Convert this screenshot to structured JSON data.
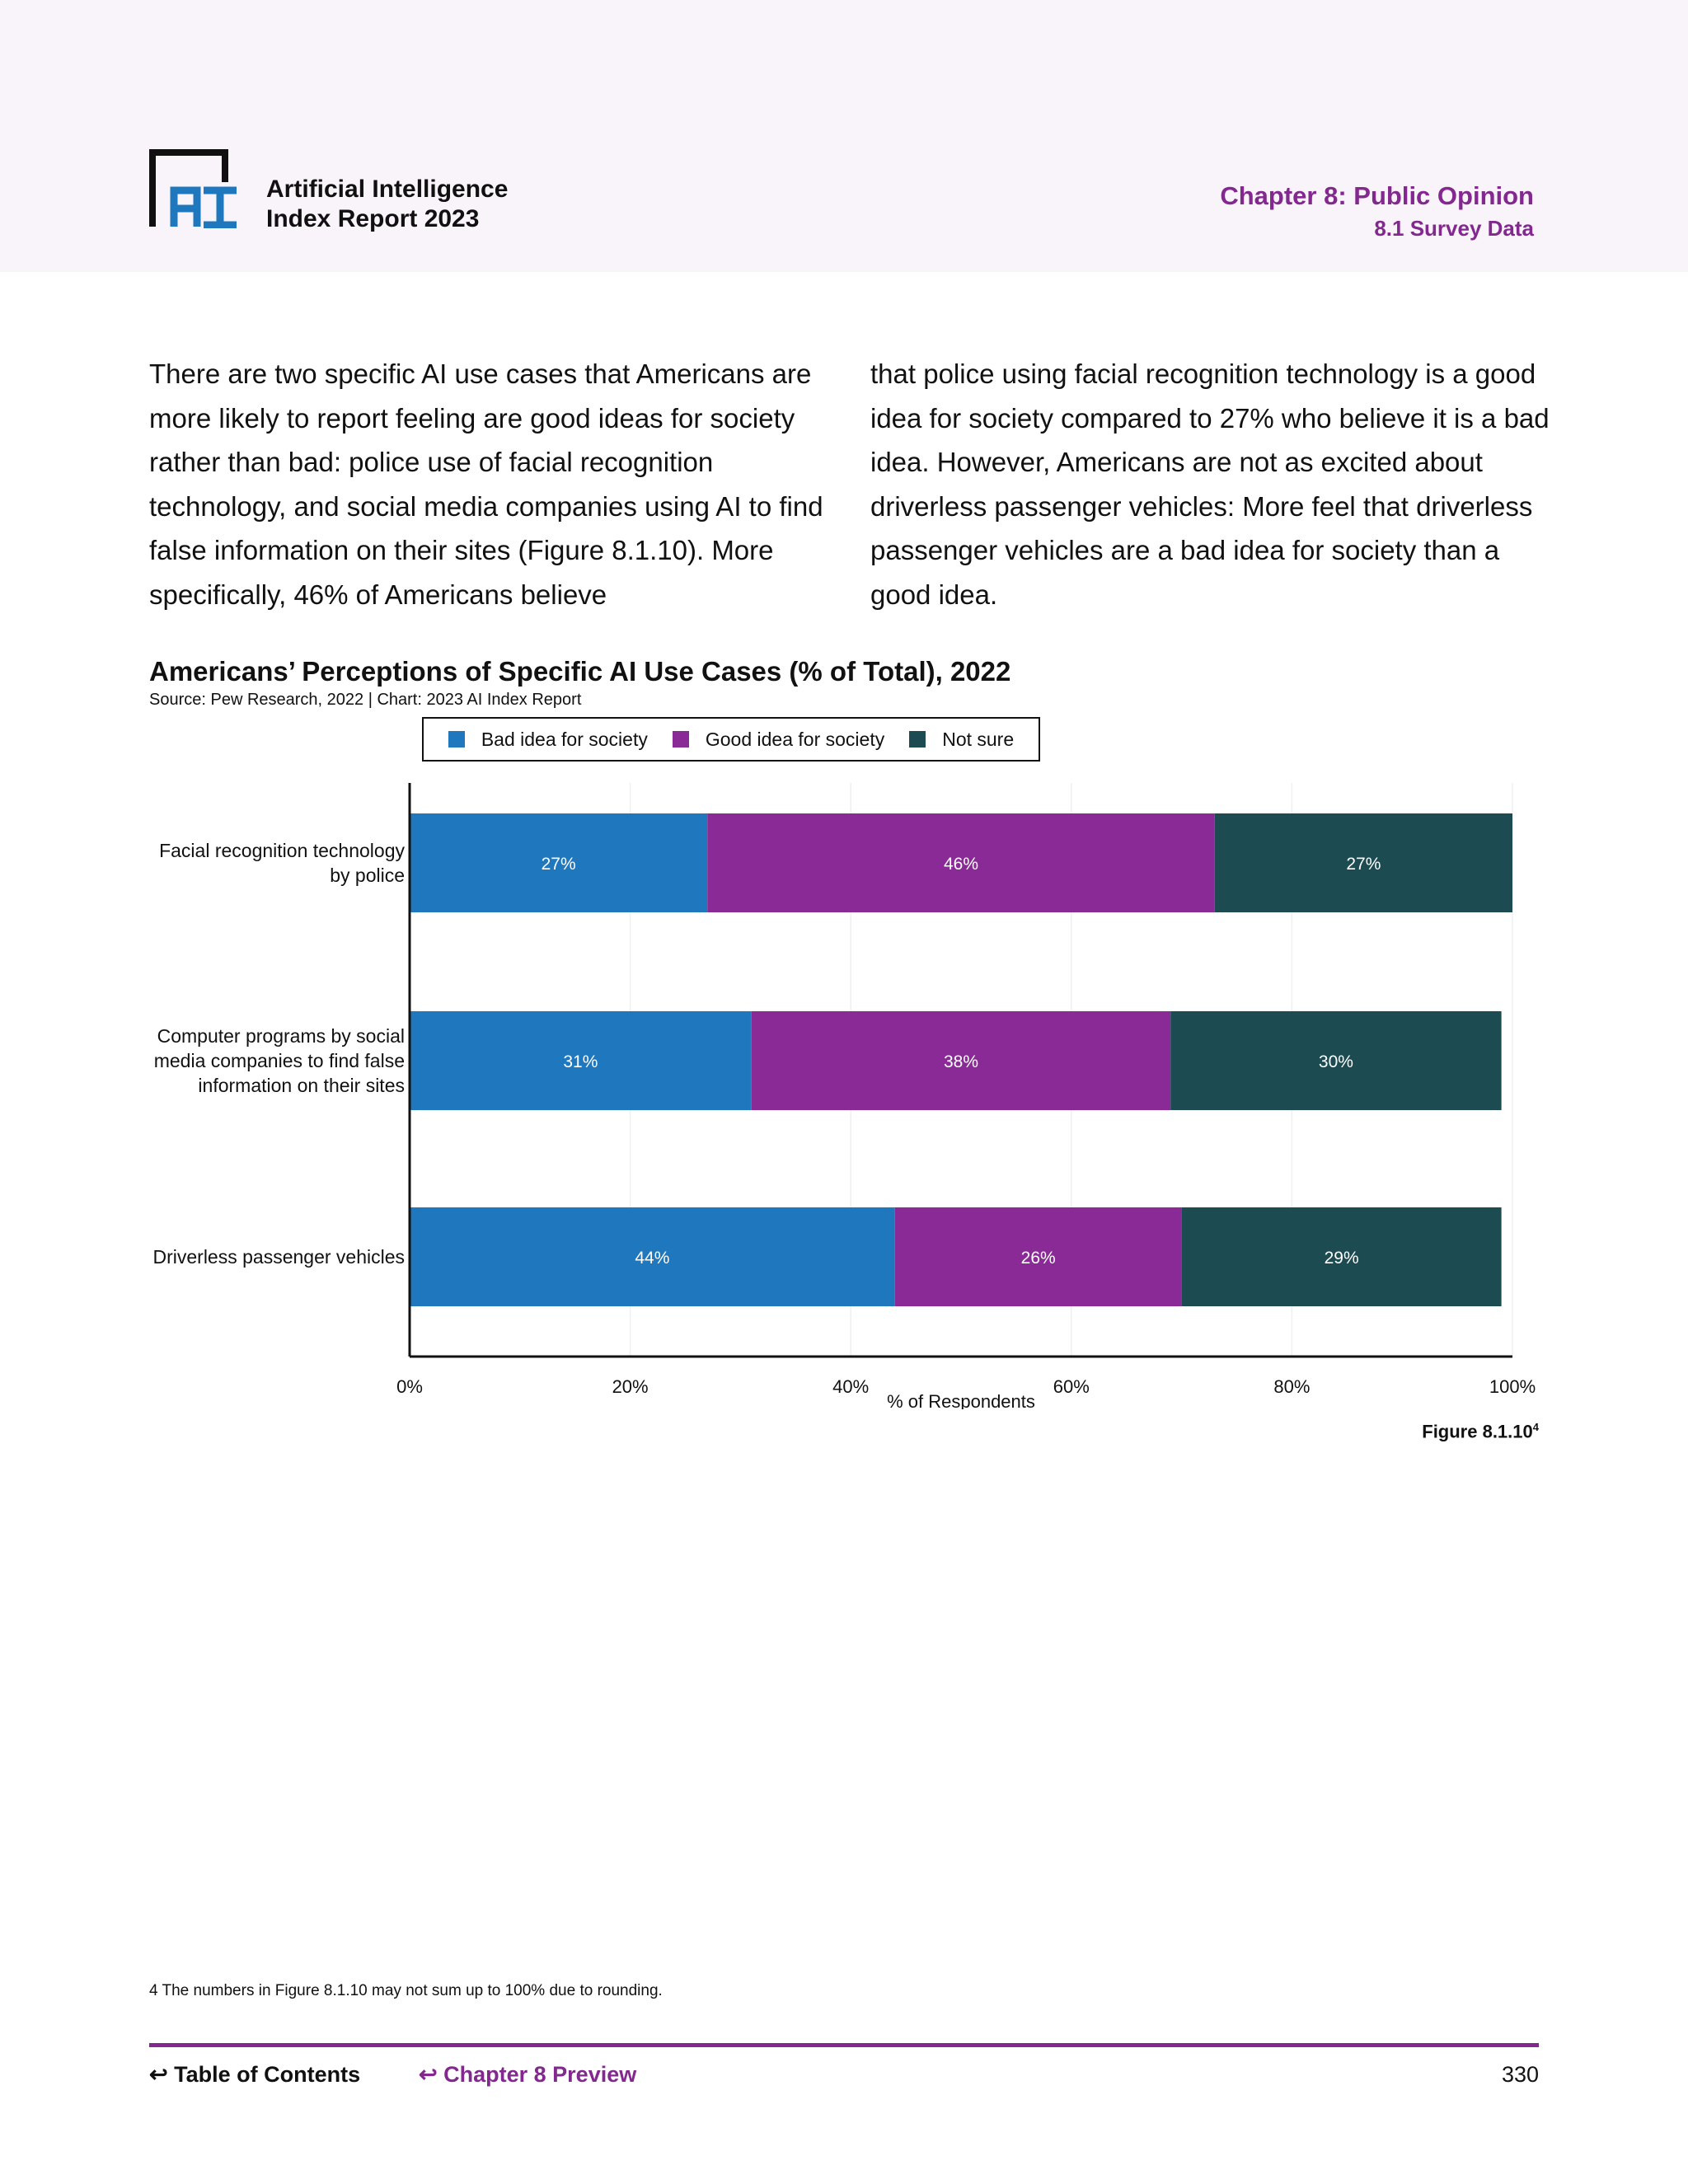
{
  "header": {
    "brand_line1": "Artificial Intelligence",
    "brand_line2": "Index Report 2023",
    "logo_text": "AI",
    "chapter": "Chapter 8: Public Opinion",
    "section": "8.1 Survey Data"
  },
  "body": {
    "col1": "There are two specific AI use cases that Americans are more likely to report feeling are good ideas for society rather than bad: police use of facial recognition technology, and social media companies using AI to find false information on their sites (Figure 8.1.10). More specifically, 46% of Americans believe",
    "col2": "that police using facial recognition technology is a good idea for society compared to 27% who believe it is a bad idea. However, Americans are not as excited about driverless passenger vehicles: More feel that driverless passenger vehicles are a bad idea for society than a good idea."
  },
  "chart_data": {
    "type": "bar",
    "orientation": "horizontal",
    "stacked": true,
    "title": "Americans’ Perceptions of Specific AI Use Cases (% of Total), 2022",
    "subtitle": "Source: Pew Research, 2022 | Chart: 2023 AI Index Report",
    "xlabel": "% of Respondents",
    "xlim": [
      0,
      100
    ],
    "xticks": [
      "0%",
      "20%",
      "40%",
      "60%",
      "80%",
      "100%"
    ],
    "legend_position": "top",
    "categories": [
      [
        "Facial recognition technology",
        "by police"
      ],
      [
        "Computer programs by social",
        "media companies to find false",
        "information on their sites"
      ],
      [
        "Driverless passenger vehicles"
      ]
    ],
    "series": [
      {
        "name": "Bad idea for society",
        "color": "#1f77bd",
        "values": [
          27,
          31,
          44
        ]
      },
      {
        "name": "Good idea for society",
        "color": "#8a2a97",
        "values": [
          46,
          38,
          26
        ]
      },
      {
        "name": "Not sure",
        "color": "#1d4b52",
        "values": [
          27,
          30,
          29
        ]
      }
    ]
  },
  "figure_label": "Figure 8.1.10",
  "figure_sup": "4",
  "footnote": "4 The numbers in Figure 8.1.10 may not sum up to 100% due to rounding.",
  "footer": {
    "toc": "Table of Contents",
    "chapter_preview": "Chapter 8 Preview",
    "page": "330"
  }
}
